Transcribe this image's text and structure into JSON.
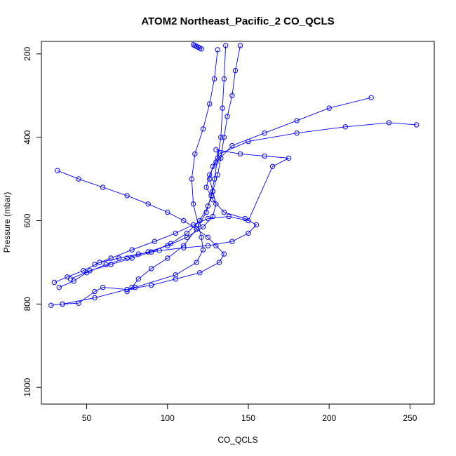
{
  "chart_data": {
    "type": "scatter",
    "title": "ATOM2 Northeast_Pacific_2 CO_QCLS",
    "xlabel": "CO_QCLS",
    "ylabel": "Pressure (mbar)",
    "xlim": [
      22,
      265
    ],
    "ylim": [
      1040,
      170
    ],
    "y_inverted": true,
    "x_ticks": [
      "50",
      "100",
      "150",
      "200",
      "250"
    ],
    "x_tick_values": [
      50,
      100,
      150,
      200,
      250
    ],
    "y_ticks": [
      "200",
      "400",
      "600",
      "800",
      "1000"
    ],
    "y_tick_values": [
      200,
      400,
      600,
      800,
      1000
    ],
    "grid": false,
    "legend": "none",
    "marker": "open-circle",
    "connect_points": true,
    "color": "#0000ff",
    "series": [
      {
        "x": [
          28,
          35,
          45,
          55,
          60,
          75,
          90,
          105,
          120,
          132,
          135,
          130,
          125,
          118,
          110,
          100,
          88,
          75,
          60,
          45,
          32
        ],
        "y": [
          803,
          800,
          798,
          770,
          760,
          765,
          755,
          740,
          725,
          700,
          680,
          660,
          640,
          620,
          600,
          580,
          560,
          540,
          520,
          500,
          480
        ]
      },
      {
        "x": [
          30,
          38,
          48,
          58,
          70,
          82,
          95,
          110,
          125,
          140,
          150,
          155,
          148,
          135,
          128,
          124,
          126,
          130,
          140,
          160,
          180,
          200,
          226
        ],
        "y": [
          748,
          735,
          720,
          700,
          690,
          680,
          672,
          665,
          660,
          650,
          630,
          610,
          595,
          580,
          550,
          520,
          490,
          460,
          420,
          390,
          360,
          330,
          305
        ]
      },
      {
        "x": [
          33,
          42,
          50,
          62,
          75,
          88,
          100,
          112,
          122,
          128,
          130,
          128,
          126,
          128,
          132,
          150,
          180,
          210,
          237,
          254
        ],
        "y": [
          760,
          745,
          725,
          705,
          690,
          675,
          660,
          640,
          615,
          590,
          560,
          530,
          500,
          470,
          440,
          410,
          390,
          375,
          365,
          370
        ]
      },
      {
        "x": [
          40,
          52,
          65,
          78,
          90,
          102,
          112,
          120,
          125,
          128,
          131,
          133,
          135,
          137,
          140,
          142,
          145
        ],
        "y": [
          740,
          720,
          705,
          690,
          675,
          655,
          630,
          600,
          565,
          530,
          490,
          450,
          400,
          350,
          300,
          240,
          180
        ]
      },
      {
        "x": [
          75,
          78,
          82,
          90,
          100,
          110,
          118,
          124,
          127,
          129,
          131,
          133,
          134,
          135,
          136
        ],
        "y": [
          770,
          760,
          740,
          715,
          690,
          660,
          620,
          580,
          540,
          500,
          450,
          400,
          330,
          260,
          180
        ]
      },
      {
        "x": [
          35,
          55,
          80,
          105,
          118,
          122,
          121,
          119,
          116,
          115,
          117,
          122,
          126,
          129,
          131
        ],
        "y": [
          800,
          785,
          760,
          730,
          700,
          670,
          640,
          610,
          560,
          500,
          440,
          380,
          320,
          260,
          190
        ]
      },
      {
        "x": [
          55,
          65,
          78,
          92,
          105,
          116,
          125,
          138,
          150,
          165,
          175,
          160,
          145,
          130
        ],
        "y": [
          705,
          690,
          670,
          650,
          630,
          610,
          595,
          590,
          600,
          470,
          450,
          445,
          440,
          430
        ]
      },
      {
        "x": [
          116,
          117,
          118,
          119,
          120,
          121
        ],
        "y": [
          178,
          180,
          182,
          184,
          186,
          188
        ]
      }
    ]
  }
}
